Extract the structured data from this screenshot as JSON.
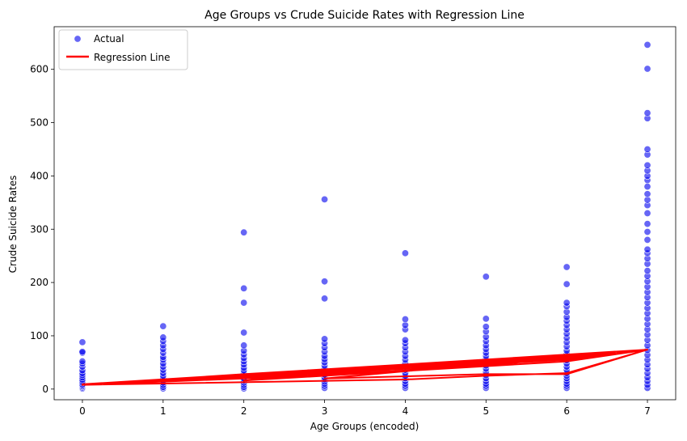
{
  "chart_data": {
    "type": "scatter",
    "title": "Age Groups vs Crude Suicide Rates with Regression Line",
    "xlabel": "Age Groups (encoded)",
    "ylabel": "Crude Suicide Rates",
    "xlim": [
      -0.35,
      7.35
    ],
    "ylim": [
      -20,
      680
    ],
    "x_ticks": [
      0,
      1,
      2,
      3,
      4,
      5,
      6,
      7
    ],
    "y_ticks": [
      0,
      100,
      200,
      300,
      400,
      500,
      600
    ],
    "grid": false,
    "legend_position": "top-left",
    "series": [
      {
        "name": "Actual",
        "kind": "scatter",
        "color": "#0000ee",
        "points": [
          [
            0,
            1
          ],
          [
            0,
            3
          ],
          [
            0,
            5
          ],
          [
            0,
            7
          ],
          [
            0,
            9
          ],
          [
            0,
            12
          ],
          [
            0,
            15
          ],
          [
            0,
            18
          ],
          [
            0,
            22
          ],
          [
            0,
            26
          ],
          [
            0,
            30
          ],
          [
            0,
            35
          ],
          [
            0,
            42
          ],
          [
            0,
            48
          ],
          [
            0,
            52
          ],
          [
            0,
            68
          ],
          [
            0,
            70
          ],
          [
            0,
            88
          ],
          [
            1,
            1
          ],
          [
            1,
            4
          ],
          [
            1,
            8
          ],
          [
            1,
            12
          ],
          [
            1,
            16
          ],
          [
            1,
            20
          ],
          [
            1,
            25
          ],
          [
            1,
            30
          ],
          [
            1,
            36
          ],
          [
            1,
            42
          ],
          [
            1,
            48
          ],
          [
            1,
            55
          ],
          [
            1,
            60
          ],
          [
            1,
            68
          ],
          [
            1,
            75
          ],
          [
            1,
            82
          ],
          [
            1,
            90
          ],
          [
            1,
            97
          ],
          [
            1,
            118
          ],
          [
            2,
            1
          ],
          [
            2,
            4
          ],
          [
            2,
            8
          ],
          [
            2,
            12
          ],
          [
            2,
            16
          ],
          [
            2,
            20
          ],
          [
            2,
            25
          ],
          [
            2,
            30
          ],
          [
            2,
            35
          ],
          [
            2,
            40
          ],
          [
            2,
            46
          ],
          [
            2,
            52
          ],
          [
            2,
            58
          ],
          [
            2,
            65
          ],
          [
            2,
            72
          ],
          [
            2,
            82
          ],
          [
            2,
            106
          ],
          [
            2,
            162
          ],
          [
            2,
            189
          ],
          [
            2,
            294
          ],
          [
            3,
            2
          ],
          [
            3,
            6
          ],
          [
            3,
            10
          ],
          [
            3,
            14
          ],
          [
            3,
            18
          ],
          [
            3,
            22
          ],
          [
            3,
            27
          ],
          [
            3,
            32
          ],
          [
            3,
            38
          ],
          [
            3,
            44
          ],
          [
            3,
            50
          ],
          [
            3,
            56
          ],
          [
            3,
            62
          ],
          [
            3,
            70
          ],
          [
            3,
            78
          ],
          [
            3,
            86
          ],
          [
            3,
            94
          ],
          [
            3,
            170
          ],
          [
            3,
            202
          ],
          [
            3,
            356
          ],
          [
            4,
            2
          ],
          [
            4,
            6
          ],
          [
            4,
            10
          ],
          [
            4,
            15
          ],
          [
            4,
            20
          ],
          [
            4,
            25
          ],
          [
            4,
            30
          ],
          [
            4,
            36
          ],
          [
            4,
            42
          ],
          [
            4,
            48
          ],
          [
            4,
            55
          ],
          [
            4,
            62
          ],
          [
            4,
            70
          ],
          [
            4,
            78
          ],
          [
            4,
            86
          ],
          [
            4,
            92
          ],
          [
            4,
            112
          ],
          [
            4,
            120
          ],
          [
            4,
            131
          ],
          [
            4,
            255
          ],
          [
            5,
            2
          ],
          [
            5,
            6
          ],
          [
            5,
            10
          ],
          [
            5,
            15
          ],
          [
            5,
            20
          ],
          [
            5,
            26
          ],
          [
            5,
            32
          ],
          [
            5,
            38
          ],
          [
            5,
            44
          ],
          [
            5,
            50
          ],
          [
            5,
            56
          ],
          [
            5,
            62
          ],
          [
            5,
            68
          ],
          [
            5,
            75
          ],
          [
            5,
            82
          ],
          [
            5,
            90
          ],
          [
            5,
            98
          ],
          [
            5,
            108
          ],
          [
            5,
            117
          ],
          [
            5,
            132
          ],
          [
            5,
            211
          ],
          [
            6,
            2
          ],
          [
            6,
            6
          ],
          [
            6,
            10
          ],
          [
            6,
            15
          ],
          [
            6,
            20
          ],
          [
            6,
            25
          ],
          [
            6,
            30
          ],
          [
            6,
            36
          ],
          [
            6,
            42
          ],
          [
            6,
            48
          ],
          [
            6,
            54
          ],
          [
            6,
            60
          ],
          [
            6,
            66
          ],
          [
            6,
            72
          ],
          [
            6,
            80
          ],
          [
            6,
            88
          ],
          [
            6,
            96
          ],
          [
            6,
            104
          ],
          [
            6,
            112
          ],
          [
            6,
            120
          ],
          [
            6,
            128
          ],
          [
            6,
            135
          ],
          [
            6,
            145
          ],
          [
            6,
            155
          ],
          [
            6,
            162
          ],
          [
            6,
            197
          ],
          [
            6,
            229
          ],
          [
            7,
            2
          ],
          [
            7,
            8
          ],
          [
            7,
            15
          ],
          [
            7,
            22
          ],
          [
            7,
            30
          ],
          [
            7,
            38
          ],
          [
            7,
            46
          ],
          [
            7,
            55
          ],
          [
            7,
            64
          ],
          [
            7,
            73
          ],
          [
            7,
            82
          ],
          [
            7,
            92
          ],
          [
            7,
            102
          ],
          [
            7,
            112
          ],
          [
            7,
            122
          ],
          [
            7,
            132
          ],
          [
            7,
            142
          ],
          [
            7,
            152
          ],
          [
            7,
            162
          ],
          [
            7,
            172
          ],
          [
            7,
            182
          ],
          [
            7,
            192
          ],
          [
            7,
            202
          ],
          [
            7,
            212
          ],
          [
            7,
            222
          ],
          [
            7,
            235
          ],
          [
            7,
            245
          ],
          [
            7,
            255
          ],
          [
            7,
            262
          ],
          [
            7,
            280
          ],
          [
            7,
            295
          ],
          [
            7,
            310
          ],
          [
            7,
            330
          ],
          [
            7,
            345
          ],
          [
            7,
            355
          ],
          [
            7,
            366
          ],
          [
            7,
            380
          ],
          [
            7,
            392
          ],
          [
            7,
            400
          ],
          [
            7,
            410
          ],
          [
            7,
            420
          ],
          [
            7,
            440
          ],
          [
            7,
            450
          ],
          [
            7,
            508
          ],
          [
            7,
            518
          ],
          [
            7,
            601
          ],
          [
            7,
            646
          ]
        ]
      },
      {
        "name": "Regression Line",
        "kind": "line",
        "color": "#ff0000",
        "points": [
          [
            0,
            8
          ],
          [
            1,
            16
          ],
          [
            2,
            24
          ],
          [
            3,
            32
          ],
          [
            4,
            40
          ],
          [
            5,
            49
          ],
          [
            6,
            57
          ],
          [
            7,
            74
          ],
          [
            0,
            8
          ],
          [
            2,
            20
          ],
          [
            4,
            38
          ],
          [
            6,
            55
          ],
          [
            7,
            74
          ],
          [
            0,
            8
          ],
          [
            3,
            26
          ],
          [
            5,
            44
          ],
          [
            7,
            74
          ],
          [
            0,
            8
          ],
          [
            4,
            18
          ],
          [
            5,
            25
          ],
          [
            6,
            30
          ],
          [
            7,
            74
          ],
          [
            0,
            8
          ],
          [
            2,
            22
          ],
          [
            3,
            30
          ],
          [
            4,
            42
          ],
          [
            5,
            52
          ],
          [
            6,
            62
          ],
          [
            7,
            74
          ],
          [
            1,
            14
          ],
          [
            3,
            35
          ],
          [
            5,
            50
          ],
          [
            6,
            60
          ],
          [
            7,
            74
          ],
          [
            0,
            8
          ],
          [
            2,
            26
          ],
          [
            4,
            44
          ],
          [
            6,
            64
          ],
          [
            7,
            74
          ],
          [
            2,
            16
          ],
          [
            4,
            34
          ],
          [
            6,
            52
          ],
          [
            7,
            74
          ],
          [
            0,
            9
          ],
          [
            7,
            74
          ],
          [
            3,
            20
          ],
          [
            5,
            28
          ],
          [
            6,
            28
          ],
          [
            7,
            74
          ],
          [
            1,
            18
          ],
          [
            2,
            28
          ],
          [
            4,
            46
          ],
          [
            5,
            54
          ],
          [
            7,
            74
          ]
        ]
      }
    ]
  }
}
